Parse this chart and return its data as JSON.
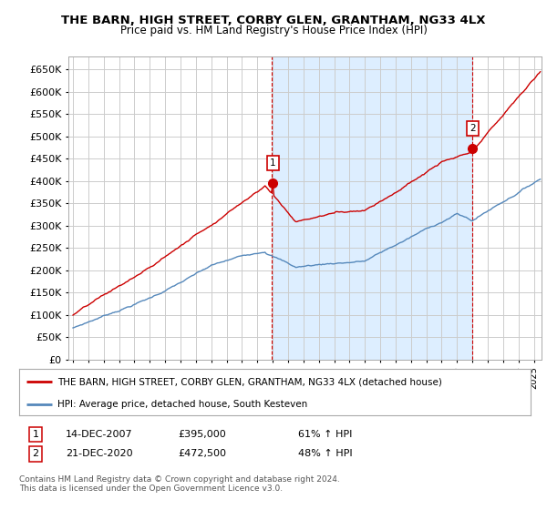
{
  "title": "THE BARN, HIGH STREET, CORBY GLEN, GRANTHAM, NG33 4LX",
  "subtitle": "Price paid vs. HM Land Registry's House Price Index (HPI)",
  "ytick_values": [
    0,
    50000,
    100000,
    150000,
    200000,
    250000,
    300000,
    350000,
    400000,
    450000,
    500000,
    550000,
    600000,
    650000
  ],
  "ylim": [
    0,
    680000
  ],
  "xlim_start": 1994.7,
  "xlim_end": 2025.5,
  "sale1_x": 2007.96,
  "sale1_y": 395000,
  "sale2_x": 2020.97,
  "sale2_y": 472500,
  "legend_line1": "THE BARN, HIGH STREET, CORBY GLEN, GRANTHAM, NG33 4LX (detached house)",
  "legend_line2": "HPI: Average price, detached house, South Kesteven",
  "note1_num": "1",
  "note1_date": "14-DEC-2007",
  "note1_price": "£395,000",
  "note1_hpi": "61% ↑ HPI",
  "note2_num": "2",
  "note2_date": "21-DEC-2020",
  "note2_price": "£472,500",
  "note2_hpi": "48% ↑ HPI",
  "footer": "Contains HM Land Registry data © Crown copyright and database right 2024.\nThis data is licensed under the Open Government Licence v3.0.",
  "red_color": "#cc0000",
  "blue_color": "#5588bb",
  "shade_color": "#ddeeff",
  "bg_color": "#ffffff",
  "grid_color": "#cccccc"
}
